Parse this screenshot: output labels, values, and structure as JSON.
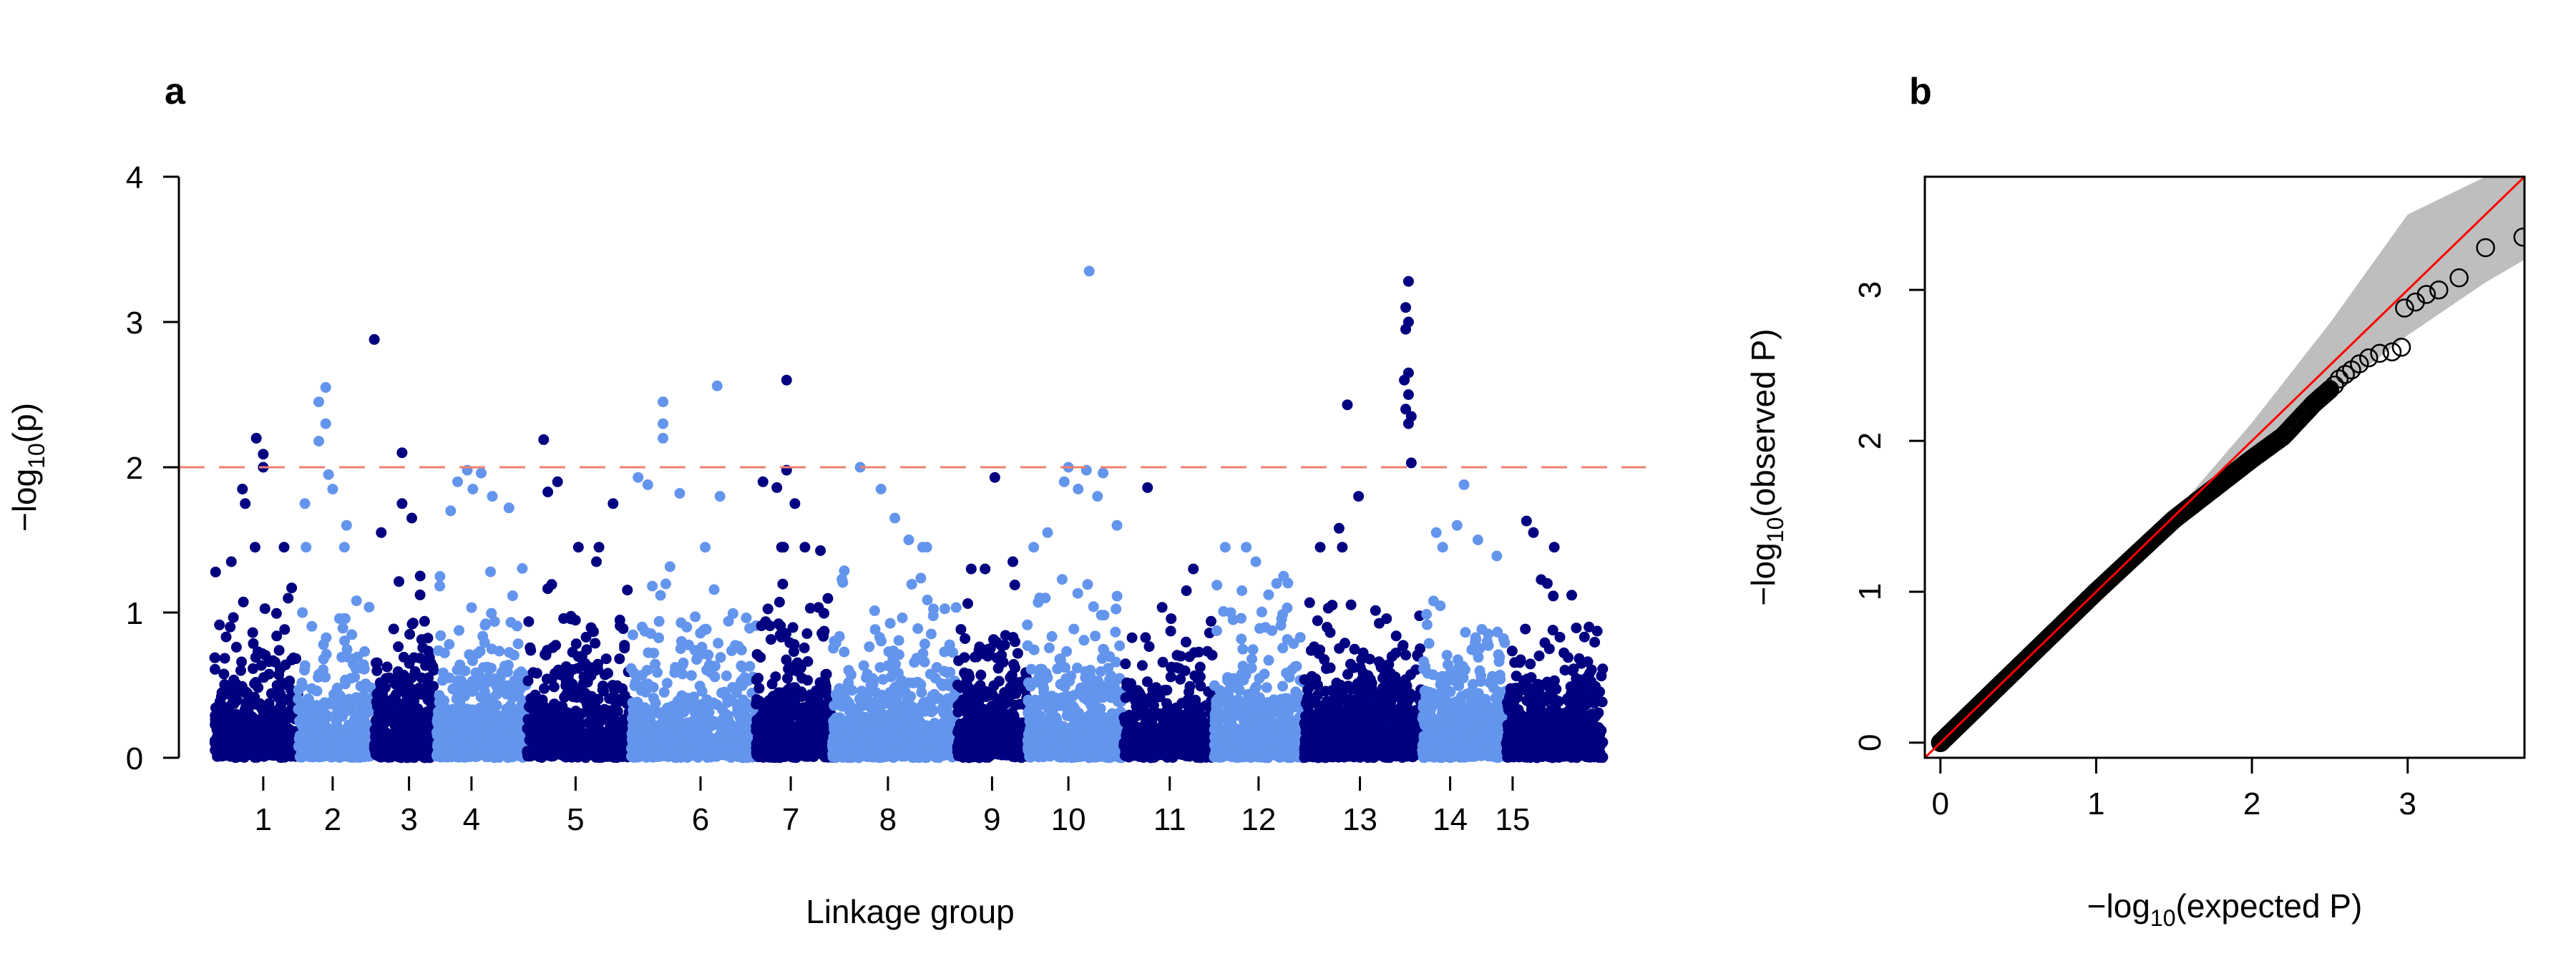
{
  "chart_data": [
    {
      "panel_label": "a",
      "type": "scatter",
      "title": "",
      "xlabel": "Linkage group",
      "ylabel": {
        "prefix": "−log",
        "sub": "10",
        "suffix": "(p)"
      },
      "ylim": [
        0,
        4
      ],
      "yticks": [
        "0",
        "1",
        "2",
        "3",
        "4"
      ],
      "grid": false,
      "legend": "none",
      "threshold": {
        "value": 2,
        "color": "#F08070",
        "style": "dashed"
      },
      "colors": {
        "odd_groups": "#000080",
        "even_groups": "#6495ED"
      },
      "categories": [
        "1",
        "2",
        "3",
        "4",
        "5",
        "6",
        "7",
        "8",
        "9",
        "10",
        "11",
        "12",
        "13",
        "14",
        "15"
      ],
      "x_span": [
        0,
        1000
      ],
      "groups": [
        {
          "name": "1",
          "x_range": [
            0,
            60
          ],
          "count": 500,
          "peaks": [
            {
              "x": 30,
              "y": 2.2
            },
            {
              "x": 35,
              "y": 2.09
            },
            {
              "x": 35,
              "y": 2.0
            },
            {
              "x": 20,
              "y": 1.85
            },
            {
              "x": 22,
              "y": 1.75
            },
            {
              "x": 12,
              "y": 1.35
            },
            {
              "x": 50,
              "y": 1.45
            }
          ]
        },
        {
          "name": "2",
          "x_range": [
            60,
            115
          ],
          "count": 440,
          "peaks": [
            {
              "x": 80,
              "y": 2.55
            },
            {
              "x": 75,
              "y": 2.45
            },
            {
              "x": 80,
              "y": 2.3
            },
            {
              "x": 75,
              "y": 2.18
            },
            {
              "x": 82,
              "y": 1.95
            },
            {
              "x": 85,
              "y": 1.85
            },
            {
              "x": 65,
              "y": 1.75
            },
            {
              "x": 95,
              "y": 1.6
            }
          ]
        },
        {
          "name": "3",
          "x_range": [
            115,
            160
          ],
          "count": 420,
          "peaks": [
            {
              "x": 115,
              "y": 2.88
            },
            {
              "x": 135,
              "y": 2.1
            },
            {
              "x": 135,
              "y": 1.75
            },
            {
              "x": 142,
              "y": 1.65
            },
            {
              "x": 120,
              "y": 1.55
            }
          ]
        },
        {
          "name": "4",
          "x_range": [
            160,
            225
          ],
          "count": 640,
          "peaks": [
            {
              "x": 182,
              "y": 1.98
            },
            {
              "x": 192,
              "y": 1.96
            },
            {
              "x": 175,
              "y": 1.9
            },
            {
              "x": 186,
              "y": 1.85
            },
            {
              "x": 200,
              "y": 1.8
            },
            {
              "x": 212,
              "y": 1.72
            },
            {
              "x": 170,
              "y": 1.7
            }
          ]
        },
        {
          "name": "5",
          "x_range": [
            225,
            300
          ],
          "count": 620,
          "peaks": [
            {
              "x": 237,
              "y": 2.19
            },
            {
              "x": 247,
              "y": 1.9
            },
            {
              "x": 240,
              "y": 1.83
            },
            {
              "x": 287,
              "y": 1.75
            },
            {
              "x": 262,
              "y": 1.45
            },
            {
              "x": 275,
              "y": 1.35
            }
          ]
        },
        {
          "name": "6",
          "x_range": [
            300,
            390
          ],
          "count": 680,
          "peaks": [
            {
              "x": 323,
              "y": 2.45
            },
            {
              "x": 323,
              "y": 2.3
            },
            {
              "x": 323,
              "y": 2.2
            },
            {
              "x": 362,
              "y": 2.56
            },
            {
              "x": 305,
              "y": 1.93
            },
            {
              "x": 312,
              "y": 1.88
            },
            {
              "x": 335,
              "y": 1.82
            },
            {
              "x": 364,
              "y": 1.8
            }
          ]
        },
        {
          "name": "7",
          "x_range": [
            390,
            445
          ],
          "count": 560,
          "peaks": [
            {
              "x": 412,
              "y": 2.6
            },
            {
              "x": 412,
              "y": 1.98
            },
            {
              "x": 405,
              "y": 1.86
            },
            {
              "x": 395,
              "y": 1.9
            },
            {
              "x": 418,
              "y": 1.75
            }
          ]
        },
        {
          "name": "8",
          "x_range": [
            445,
            535
          ],
          "count": 700,
          "peaks": [
            {
              "x": 465,
              "y": 2.0
            },
            {
              "x": 480,
              "y": 1.85
            },
            {
              "x": 490,
              "y": 1.65
            },
            {
              "x": 500,
              "y": 1.5
            },
            {
              "x": 510,
              "y": 1.45
            }
          ]
        },
        {
          "name": "9",
          "x_range": [
            535,
            585
          ],
          "count": 460,
          "peaks": [
            {
              "x": 562,
              "y": 1.93
            },
            {
              "x": 545,
              "y": 1.3
            },
            {
              "x": 555,
              "y": 1.3
            },
            {
              "x": 575,
              "y": 1.35
            }
          ]
        },
        {
          "name": "10",
          "x_range": [
            585,
            655
          ],
          "count": 620,
          "peaks": [
            {
              "x": 630,
              "y": 3.35
            },
            {
              "x": 615,
              "y": 2.0
            },
            {
              "x": 628,
              "y": 1.98
            },
            {
              "x": 640,
              "y": 1.96
            },
            {
              "x": 612,
              "y": 1.9
            },
            {
              "x": 622,
              "y": 1.85
            },
            {
              "x": 636,
              "y": 1.8
            },
            {
              "x": 650,
              "y": 1.6
            },
            {
              "x": 600,
              "y": 1.55
            }
          ]
        },
        {
          "name": "11",
          "x_range": [
            655,
            720
          ],
          "count": 450,
          "peaks": [
            {
              "x": 672,
              "y": 1.86
            },
            {
              "x": 705,
              "y": 1.3
            },
            {
              "x": 700,
              "y": 1.15
            }
          ]
        },
        {
          "name": "12",
          "x_range": [
            720,
            785
          ],
          "count": 560,
          "peaks": [
            {
              "x": 750,
              "y": 1.35
            },
            {
              "x": 770,
              "y": 1.25
            },
            {
              "x": 765,
              "y": 1.2
            },
            {
              "x": 740,
              "y": 1.15
            }
          ]
        },
        {
          "name": "13",
          "x_range": [
            785,
            870
          ],
          "count": 820,
          "peaks": [
            {
              "x": 816,
              "y": 2.43
            },
            {
              "x": 860,
              "y": 3.28
            },
            {
              "x": 858,
              "y": 3.1
            },
            {
              "x": 860,
              "y": 3.0
            },
            {
              "x": 858,
              "y": 2.95
            },
            {
              "x": 860,
              "y": 2.65
            },
            {
              "x": 857,
              "y": 2.6
            },
            {
              "x": 860,
              "y": 2.5
            },
            {
              "x": 858,
              "y": 2.4
            },
            {
              "x": 862,
              "y": 2.35
            },
            {
              "x": 860,
              "y": 2.3
            },
            {
              "x": 862,
              "y": 2.03
            },
            {
              "x": 824,
              "y": 1.8
            },
            {
              "x": 810,
              "y": 1.58
            }
          ]
        },
        {
          "name": "14",
          "x_range": [
            870,
            930
          ],
          "count": 600,
          "peaks": [
            {
              "x": 900,
              "y": 1.88
            },
            {
              "x": 895,
              "y": 1.6
            },
            {
              "x": 880,
              "y": 1.55
            },
            {
              "x": 910,
              "y": 1.5
            }
          ]
        },
        {
          "name": "15",
          "x_range": [
            930,
            1000
          ],
          "count": 560,
          "peaks": [
            {
              "x": 945,
              "y": 1.63
            },
            {
              "x": 950,
              "y": 1.55
            },
            {
              "x": 965,
              "y": 1.45
            },
            {
              "x": 960,
              "y": 1.2
            },
            {
              "x": 990,
              "y": 0.9
            }
          ]
        }
      ],
      "tick_positions": [
        35,
        85,
        140,
        185,
        260,
        350,
        415,
        485,
        560,
        615,
        688,
        752,
        825,
        890,
        935
      ]
    },
    {
      "panel_label": "b",
      "type": "scatter",
      "title": "",
      "xlabel": {
        "prefix": "−log",
        "sub": "10",
        "suffix": "(expected P)"
      },
      "ylabel": {
        "prefix": "−log",
        "sub": "10",
        "suffix": "(observed P)"
      },
      "xlim": [
        -0.1,
        3.75
      ],
      "ylim": [
        -0.1,
        3.75
      ],
      "xticks": [
        "0",
        "1",
        "2",
        "3"
      ],
      "yticks": [
        "0",
        "1",
        "2",
        "3"
      ],
      "grid": false,
      "legend": "none",
      "reference_line": {
        "slope": 1,
        "intercept": 0,
        "color": "#FF0000"
      },
      "confidence_band": {
        "color": "#BEBEBE",
        "lower": [
          [
            0,
            0
          ],
          [
            1,
            1
          ],
          [
            1.5,
            1.48
          ],
          [
            2,
            1.9
          ],
          [
            2.5,
            2.3
          ],
          [
            3,
            2.7
          ],
          [
            3.5,
            3.05
          ],
          [
            3.75,
            3.2
          ]
        ],
        "upper": [
          [
            0,
            0
          ],
          [
            1,
            1
          ],
          [
            1.5,
            1.52
          ],
          [
            2,
            2.12
          ],
          [
            2.5,
            2.78
          ],
          [
            3,
            3.5
          ],
          [
            3.5,
            3.75
          ],
          [
            3.75,
            3.75
          ]
        ]
      },
      "points": [
        [
          2.5,
          2.34
        ],
        [
          2.53,
          2.37
        ],
        [
          2.56,
          2.41
        ],
        [
          2.6,
          2.44
        ],
        [
          2.64,
          2.47
        ],
        [
          2.69,
          2.51
        ],
        [
          2.75,
          2.55
        ],
        [
          2.82,
          2.58
        ],
        [
          2.9,
          2.59
        ],
        [
          2.96,
          2.62
        ],
        [
          2.98,
          2.88
        ],
        [
          3.05,
          2.92
        ],
        [
          3.12,
          2.97
        ],
        [
          3.2,
          3.0
        ],
        [
          3.33,
          3.08
        ],
        [
          3.5,
          3.28
        ],
        [
          3.74,
          3.35
        ]
      ],
      "trend": [
        [
          0,
          0
        ],
        [
          1,
          1
        ],
        [
          1.5,
          1.48
        ],
        [
          1.8,
          1.72
        ],
        [
          2.0,
          1.88
        ],
        [
          2.2,
          2.03
        ],
        [
          2.4,
          2.25
        ],
        [
          2.5,
          2.34
        ]
      ]
    }
  ]
}
